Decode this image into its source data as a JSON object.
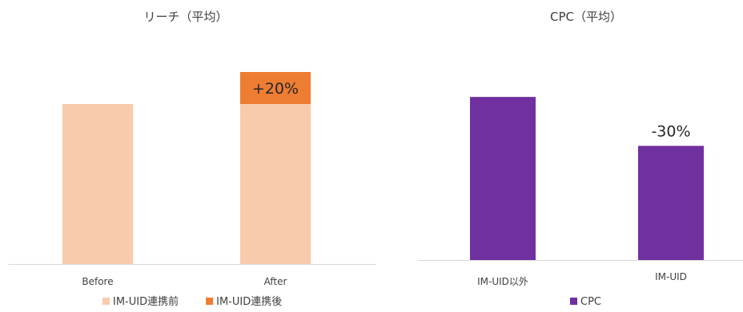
{
  "chart_data": [
    {
      "type": "bar",
      "title": "リーチ（平均）",
      "categories": [
        "Before",
        "After"
      ],
      "series": [
        {
          "name": "IM-UID連携前",
          "values": [
            100,
            100
          ],
          "color": "#F8CBAD"
        },
        {
          "name": "IM-UID連携後",
          "values": [
            0,
            20
          ],
          "color": "#ED7D31"
        }
      ],
      "stacked": true,
      "data_labels": [
        "",
        "+20%"
      ],
      "ylim": [
        0,
        130
      ],
      "grid": false,
      "legend": "bottom"
    },
    {
      "type": "bar",
      "title": "CPC（平均）",
      "categories": [
        "IM-UID以外",
        "IM-UID"
      ],
      "series": [
        {
          "name": "CPC",
          "values": [
            100,
            70
          ],
          "color": "#7030A0"
        }
      ],
      "data_labels": [
        "",
        "-30%"
      ],
      "ylim": [
        0,
        130
      ],
      "grid": false,
      "legend": "bottom"
    }
  ]
}
